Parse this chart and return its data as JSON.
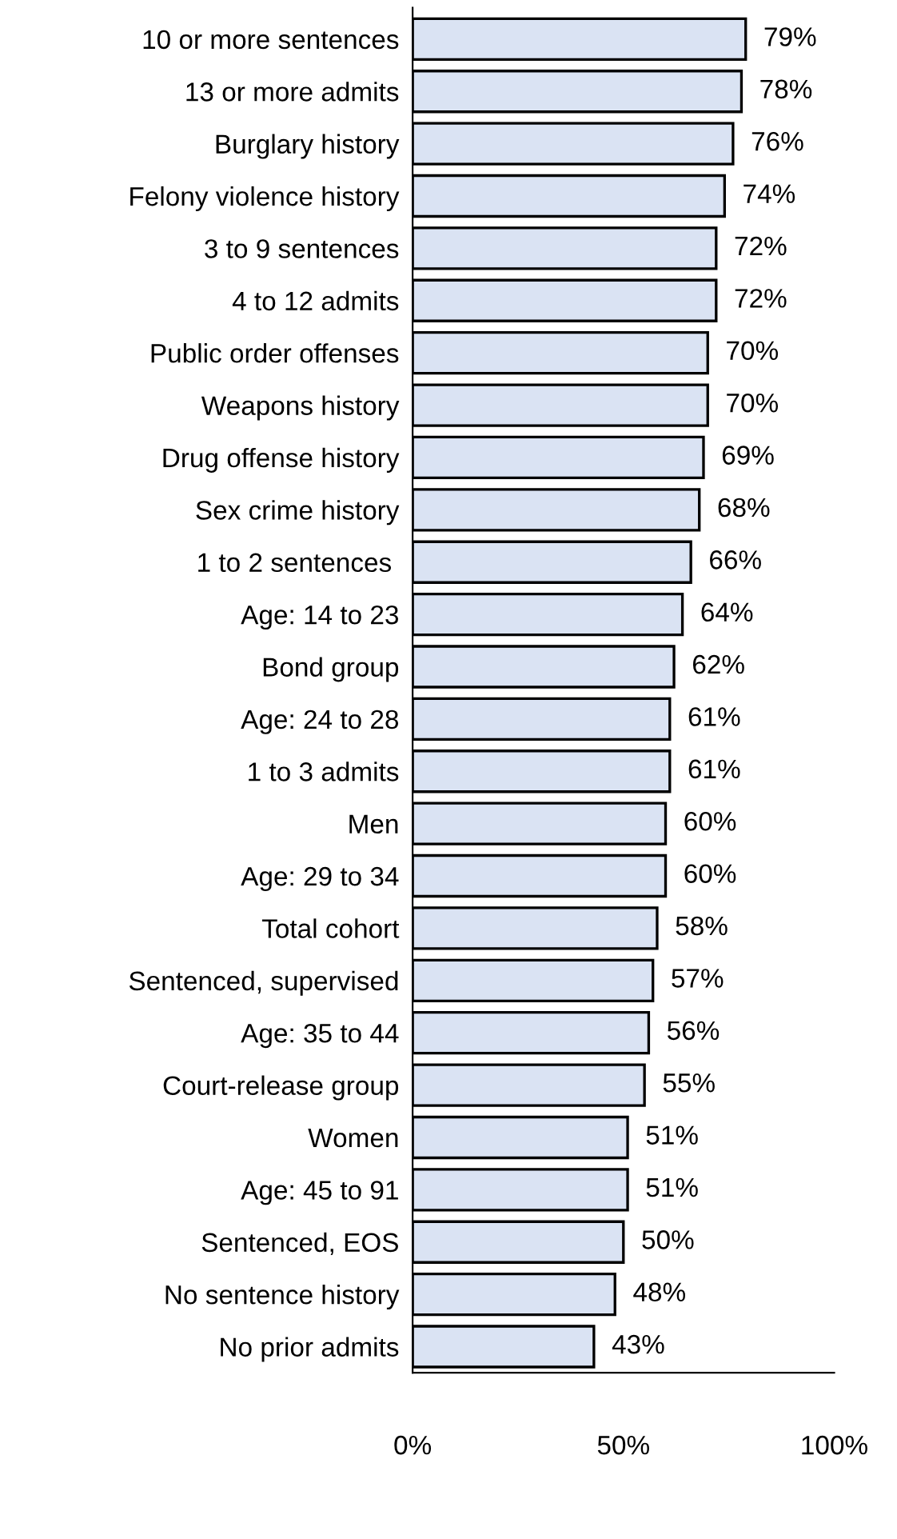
{
  "chart_data": {
    "type": "bar",
    "orientation": "horizontal",
    "categories": [
      "10 or more sentences",
      "13 or more admits",
      "Burglary history",
      "Felony violence history",
      "3 to 9 sentences",
      "4 to 12 admits",
      "Public order offenses",
      "Weapons history",
      "Drug offense history",
      "Sex crime history",
      "1 to 2 sentences ",
      "Age: 14 to 23",
      "Bond group",
      "Age: 24 to 28",
      "1 to 3 admits",
      "Men",
      "Age: 29 to 34",
      "Total cohort",
      "Sentenced, supervised",
      "Age: 35 to 44",
      "Court-release group",
      "Women",
      "Age: 45 to 91",
      "Sentenced, EOS",
      "No sentence history",
      "No prior admits"
    ],
    "values": [
      79,
      78,
      76,
      74,
      72,
      72,
      70,
      70,
      69,
      68,
      66,
      64,
      62,
      61,
      61,
      60,
      60,
      58,
      57,
      56,
      55,
      51,
      51,
      50,
      48,
      43
    ],
    "value_labels": [
      "79%",
      "78%",
      "76%",
      "74%",
      "72%",
      "72%",
      "70%",
      "70%",
      "69%",
      "68%",
      "66%",
      "64%",
      "62%",
      "61%",
      "61%",
      "60%",
      "60%",
      "58%",
      "57%",
      "56%",
      "55%",
      "51%",
      "51%",
      "50%",
      "48%",
      "43%"
    ],
    "color": "#dae3f3",
    "xlim": [
      0,
      100
    ],
    "xticks": [
      {
        "value": 0,
        "label": "0%"
      },
      {
        "value": 50,
        "label": "50%"
      },
      {
        "value": 100,
        "label": "100%"
      }
    ],
    "grid": false,
    "legend": false
  }
}
